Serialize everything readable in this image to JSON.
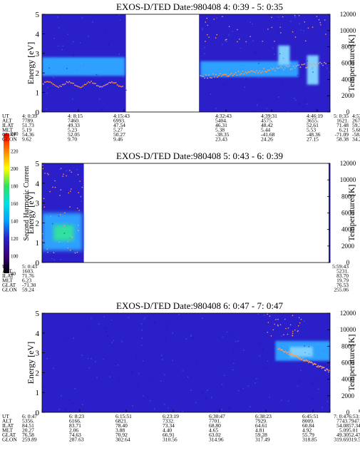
{
  "colors": {
    "background": "#ffffff",
    "plot_base": "#2a1fc8",
    "plot_dark": "#1a12a0",
    "band_cyan": "#2fa0ff",
    "band_light": "#7fd0ff",
    "band_green": "#30e0a0",
    "temperature_dots": "#ff9a5a",
    "colorbar": [
      "#000000",
      "#3a007a",
      "#2a1fc8",
      "#00a0ff",
      "#00e0e0",
      "#30e060",
      "#ffff00",
      "#ff8000",
      "#ff0000"
    ]
  },
  "colorbar": {
    "label": "Second Harmonic Current",
    "ticks": [
      "80",
      "100",
      "120",
      "140",
      "160",
      "180",
      "200",
      "220",
      "240"
    ]
  },
  "chart_data": [
    {
      "type": "heatmap",
      "title": "EXOS-D/TED   Date:980408  4: 0:39 - 5: 0:35",
      "ylabel": "Energy [eV]",
      "y2label": "Temperature [K]",
      "ylim": [
        0,
        5
      ],
      "y2lim": [
        0,
        12000
      ],
      "yticks": [
        "0",
        "1",
        "2",
        "3",
        "4",
        "5"
      ],
      "y2ticks": [
        "0",
        "2000",
        "4000",
        "6000",
        "8000",
        "10000",
        "12000"
      ],
      "x": [
        "4: 0:39",
        "4: 8:15",
        "4:15:43",
        "4:32:43",
        "4:39:31",
        "4:46:19",
        "4:53: 7",
        "5: 0:35"
      ],
      "row_labels": [
        "UT",
        "ALT",
        "ILAT",
        "MLT",
        "GLAT",
        "GLON"
      ],
      "rows": [
        [
          "7789.",
          "7460.",
          "6993.",
          "5404.",
          "4575.",
          "3655.",
          "2678.",
          "1621."
        ],
        [
          "51.73",
          "49.33",
          "47.54",
          "46.31",
          "48.42",
          "52.61",
          "59.37",
          "71.48"
        ],
        [
          "5.19",
          "5.23",
          "5.27",
          "5.38",
          "5.44",
          "5.53",
          "5.68",
          "6.21"
        ],
        [
          "54.36",
          "52.05",
          "50.27",
          "-38.35",
          "-41.68",
          "-48.36",
          "-58.37",
          "-71.09"
        ],
        [
          "9.62",
          "9.70",
          "9.46",
          "23.43",
          "24.26",
          "27.15",
          "34.26",
          "58.38"
        ]
      ],
      "data_gaps": [
        [
          "4:15:43",
          "4:32:43"
        ]
      ],
      "grid": false
    },
    {
      "type": "heatmap",
      "title": "EXOS-D/TED   Date:980408  5: 0:43 - 6: 0:39",
      "ylabel": "Energy [eV]",
      "y2label": "Temperature [K]",
      "ylim": [
        0,
        5
      ],
      "y2lim": [
        0,
        12000
      ],
      "yticks": [
        "0",
        "1",
        "2",
        "3",
        "4",
        "5"
      ],
      "y2ticks": [
        "0",
        "2000",
        "4000",
        "6000",
        "8000",
        "10000",
        "12000"
      ],
      "x": [
        "5: 0:43",
        "5:59:43"
      ],
      "row_labels": [
        "UT",
        "ALT",
        "ILAT",
        "MLT",
        "GLAT",
        "GLON"
      ],
      "rows": [
        [
          "1603.",
          "5231."
        ],
        [
          "71.76",
          "83.70"
        ],
        [
          "6.23",
          "19.79"
        ],
        [
          "-71.30",
          "76.53"
        ],
        [
          "59.24",
          "255.06"
        ]
      ],
      "grid": false
    },
    {
      "type": "heatmap",
      "title": "EXOS-D/TED   Date:980408  6: 0:47 - 7: 0:47",
      "ylabel": "Energy [eV]",
      "y2label": "Temperature [K]",
      "ylim": [
        0,
        5
      ],
      "y2lim": [
        0,
        12000
      ],
      "yticks": [
        "0",
        "1",
        "2",
        "3",
        "4",
        "5"
      ],
      "y2ticks": [
        "0",
        "2000",
        "4000",
        "6000",
        "8000",
        "10000",
        "12000"
      ],
      "x": [
        "6: 0:47",
        "6: 8:23",
        "6:15:51",
        "6:23:19",
        "6:30:47",
        "6:38:23",
        "6:45:51",
        "6:53:19",
        "7: 0:47"
      ],
      "row_labels": [
        "UT",
        "ALT",
        "ILAT",
        "MLT",
        "GLAT",
        "GLON"
      ],
      "rows": [
        [
          "5356.",
          "6166.",
          "6821.",
          "7332.",
          "7701.",
          "7929.",
          "8009.",
          "7947.",
          "7743."
        ],
        [
          "84.51",
          "83.71",
          "78.40",
          "73.34",
          "68.80",
          "64.61",
          "60.84",
          "57.34",
          "54.08"
        ],
        [
          "20.27",
          "2.06",
          "3.88",
          "4.40",
          "4.65",
          "4.81",
          "4.92",
          "5.01",
          "5.09"
        ],
        [
          "76.58",
          "74.63",
          "70.92",
          "66.91",
          "63.02",
          "59.28",
          "55.79",
          "52.47",
          "49.30"
        ],
        [
          "259.89",
          "287.63",
          "302.64",
          "310.56",
          "314.96",
          "317.49",
          "318.85",
          "319.51",
          "319.69"
        ]
      ],
      "grid": false
    }
  ]
}
